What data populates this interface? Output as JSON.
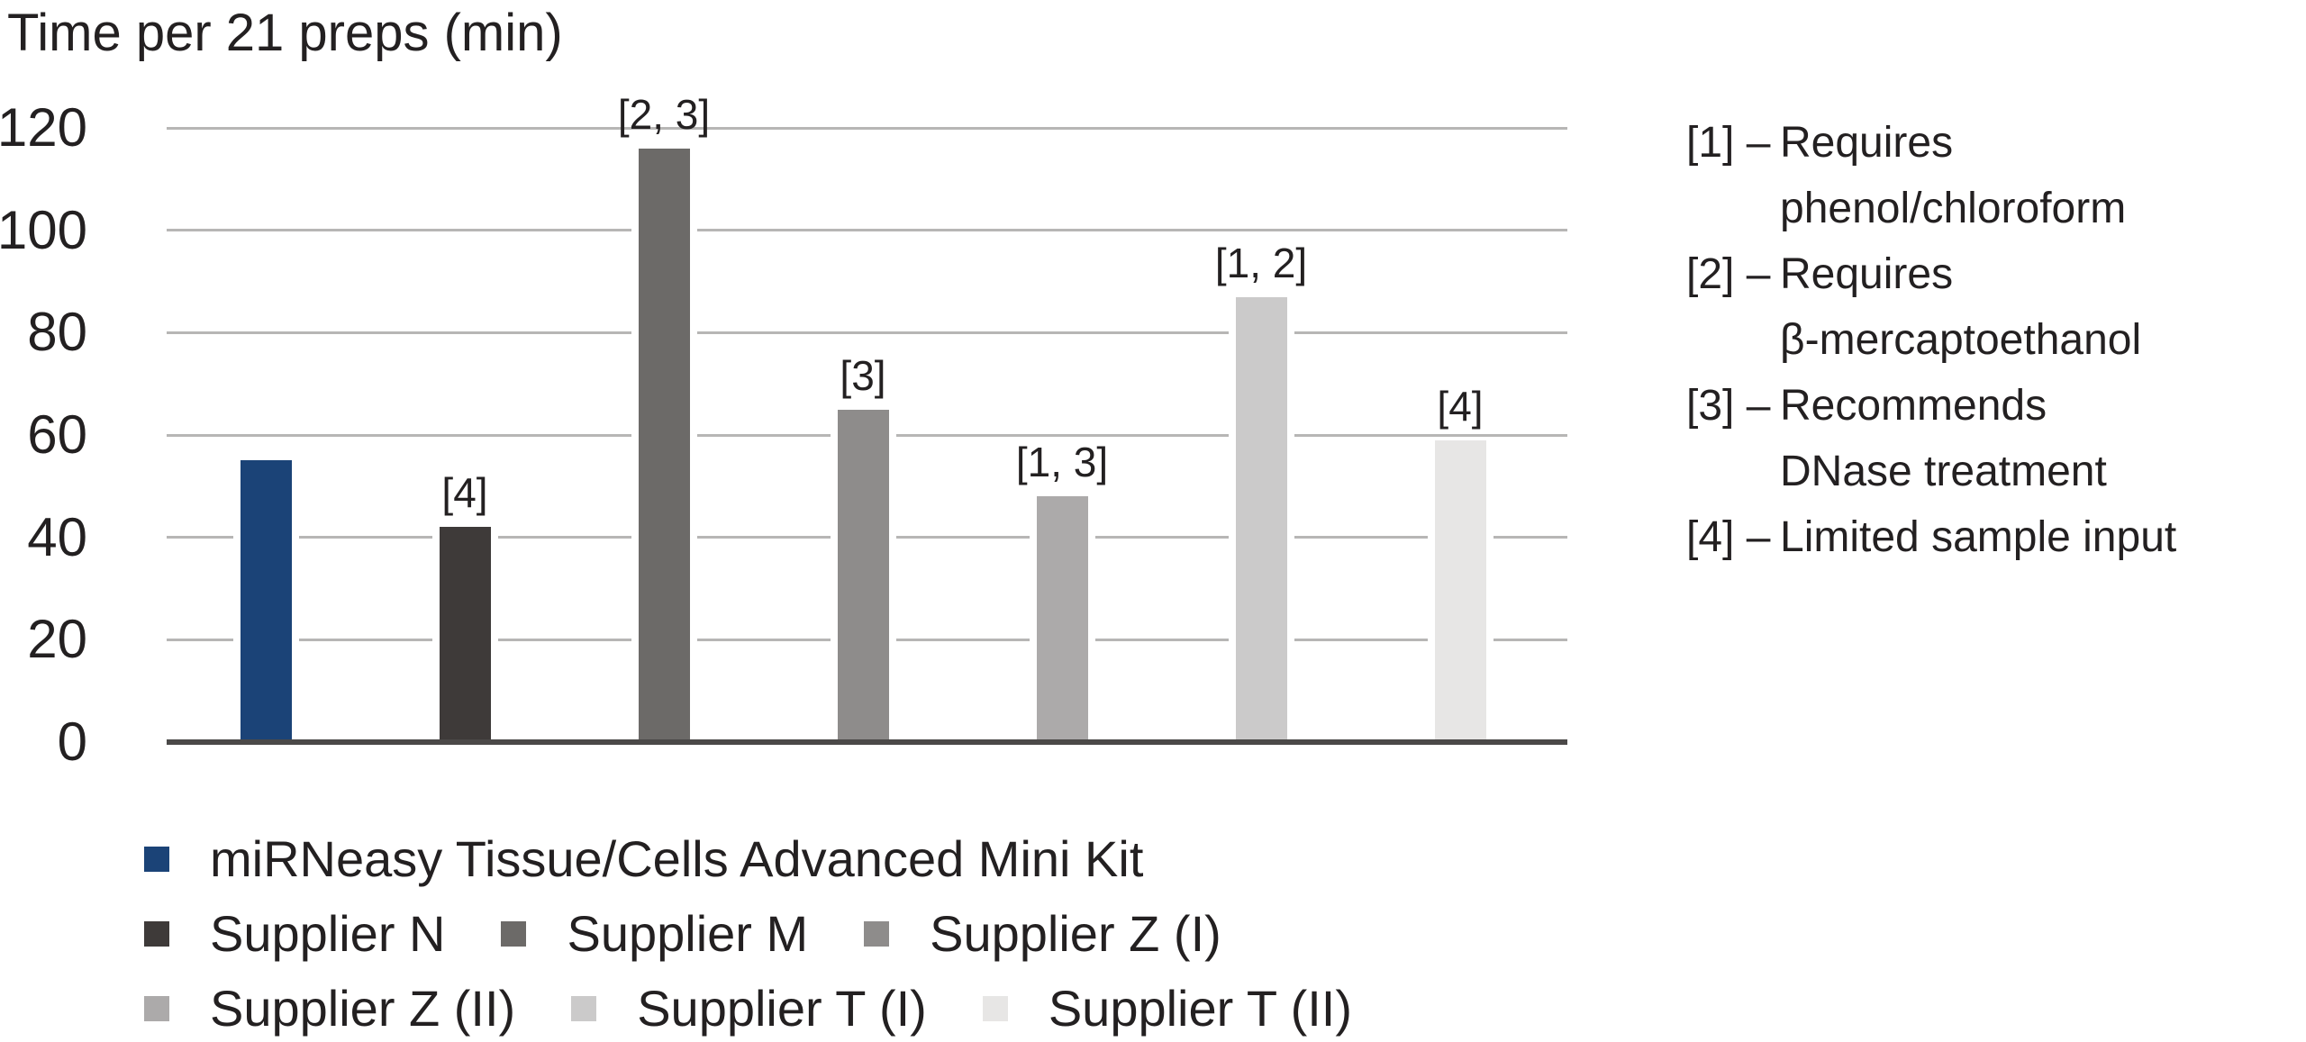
{
  "title": "Time per 21 preps (min)",
  "chart_data": {
    "type": "bar",
    "title": "Time per 21 preps (min)",
    "ylabel": "Time per 21 preps (min)",
    "xlabel": "",
    "categories": [
      "miRNeasy Tissue/Cells Advanced Mini Kit",
      "Supplier N",
      "Supplier M",
      "Supplier Z (I)",
      "Supplier Z (II)",
      "Supplier T (I)",
      "Supplier T (II)"
    ],
    "values": [
      55,
      42,
      116,
      65,
      48,
      87,
      59
    ],
    "bar_labels": [
      "",
      "[4]",
      "[2, 3]",
      "[3]",
      "[1, 3]",
      "[1, 2]",
      "[4]"
    ],
    "colors": [
      "#1b4377",
      "#3e3a39",
      "#6c6a68",
      "#8e8c8b",
      "#acaaaa",
      "#cbcaca",
      "#e7e6e5"
    ],
    "yticks": [
      0,
      20,
      40,
      60,
      80,
      100,
      120
    ],
    "ylim": [
      0,
      120
    ],
    "grid": "horizontal",
    "legend_position": "bottom",
    "legend_rows": [
      [
        0
      ],
      [
        1,
        2,
        3
      ],
      [
        4,
        5,
        6
      ]
    ]
  },
  "notes": [
    {
      "marker": "[1]",
      "separator": "–",
      "lines": [
        "Requires",
        "phenol/chloroform"
      ]
    },
    {
      "marker": "[2]",
      "separator": "–",
      "lines": [
        "Requires",
        "β-mercaptoethanol"
      ]
    },
    {
      "marker": "[3]",
      "separator": "–",
      "lines": [
        "Recommends",
        "DNase treatment"
      ]
    },
    {
      "marker": "[4]",
      "separator": "–",
      "lines": [
        "Limited sample input"
      ]
    }
  ],
  "style_colors": {
    "axis_line": "#4b4948",
    "gridline": "#b7b6b5",
    "text": "#232021",
    "background": "#ffffff",
    "accent_blue": "#1b4377"
  }
}
